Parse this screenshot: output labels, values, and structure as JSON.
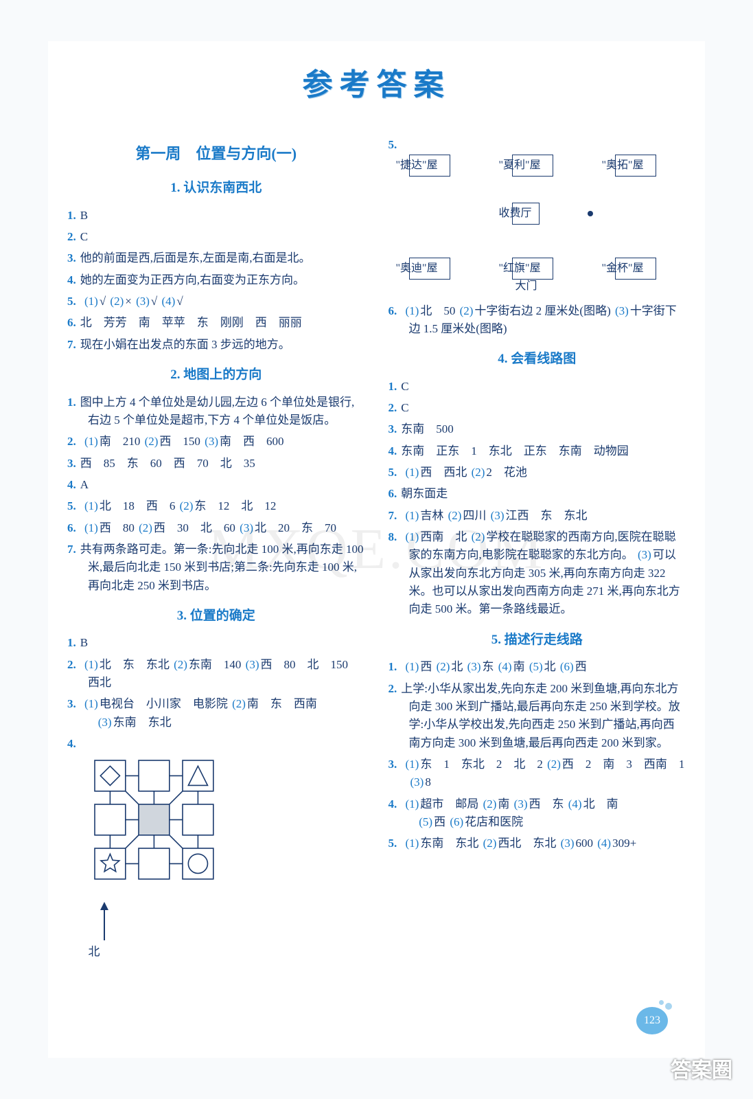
{
  "title": "参考答案",
  "watermark_center": "MXQE.COM",
  "watermark_corner": "答案圈",
  "page_number": "123",
  "left": {
    "chapter": "第一周　位置与方向(一)",
    "s1": {
      "heading": "1. 认识东南西北",
      "q1": "B",
      "q2": "C",
      "q3": "他的前面是西,后面是东,左面是南,右面是北。",
      "q4": "她的左面变为正西方向,右面变为正东方向。",
      "q5_p1": "(1)",
      "q5_v1": "√",
      "q5_p2": "(2)",
      "q5_v2": "×",
      "q5_p3": "(3)",
      "q5_v3": "√",
      "q5_p4": "(4)",
      "q5_v4": "√",
      "q6": "北　芳芳　南　苹苹　东　刚刚　西　丽丽",
      "q7": "现在小娟在出发点的东面 3 步远的地方。"
    },
    "s2": {
      "heading": "2. 地图上的方向",
      "q1": "图中上方 4 个单位处是幼儿园,左边 6 个单位处是银行,右边 5 个单位处是超市,下方 4 个单位处是饭店。",
      "q2_p1": "(1)",
      "q2_v1": "南　210",
      "q2_p2": "(2)",
      "q2_v2": "西　150",
      "q2_p3": "(3)",
      "q2_v3": "南　西　600",
      "q3": "西　85　东　60　西　70　北　35",
      "q4": "A",
      "q5_p1": "(1)",
      "q5_v1": "北　18　西　6",
      "q5_p2": "(2)",
      "q5_v2": "东　12　北　12",
      "q6_p1": "(1)",
      "q6_v1": "西　80",
      "q6_p2": "(2)",
      "q6_v2": "西　30　北　60",
      "q6_p3": "(3)",
      "q6_v3": "北　20　东　70",
      "q7": "共有两条路可走。第一条:先向北走 100 米,再向东走 100 米,最后向北走 150 米到书店;第二条:先向东走 100 米,再向北走 250 米到书店。"
    },
    "s3": {
      "heading": "3. 位置的确定",
      "q1": "B",
      "q2_p1": "(1)",
      "q2_v1": "北　东　东北",
      "q2_p2": "(2)",
      "q2_v2": "东南　140",
      "q2_p3": "(3)",
      "q2_v3": "西　80　北　150　西北",
      "q3_p1": "(1)",
      "q3_v1": "电视台　小川家　电影院",
      "q3_p2": "(2)",
      "q3_v2": "南　东　西南",
      "q3_p3": "(3)",
      "q3_v3": "东南　东北",
      "q4_north": "北",
      "diagram": {
        "grid_size": 3,
        "line_color": "#1a3a6e",
        "line_width": 1.6,
        "cell": 64,
        "fill_center": "#d0d6dd",
        "corners": {
          "nw": "diamond",
          "ne": "triangle",
          "sw": "star",
          "se": "circle"
        }
      }
    }
  },
  "right": {
    "q5": {
      "boxes": {
        "nw": "\"捷达\"屋",
        "n": "\"夏利\"屋",
        "ne": "\"奥拓\"屋",
        "c": "收费厅",
        "sw": "\"奥迪\"屋",
        "s": "\"红旗\"屋",
        "se": "\"金杯\"屋"
      },
      "gate": "大门"
    },
    "q6_p1": "(1)",
    "q6_v1": "北　50",
    "q6_p2": "(2)",
    "q6_v2": "十字街右边 2 厘米处(图略)",
    "q6_p3": "(3)",
    "q6_v3": "十字街下边 1.5 厘米处(图略)",
    "s4": {
      "heading": "4. 会看线路图",
      "q1": "C",
      "q2": "C",
      "q3": "东南　500",
      "q4": "东南　正东　1　东北　正东　东南　动物园",
      "q5_p1": "(1)",
      "q5_v1": "西　西北",
      "q5_p2": "(2)",
      "q5_v2": "2　花池",
      "q6": "朝东面走",
      "q7_p1": "(1)",
      "q7_v1": "吉林",
      "q7_p2": "(2)",
      "q7_v2": "四川",
      "q7_p3": "(3)",
      "q7_v3": "江西　东　东北",
      "q8_p1": "(1)",
      "q8_v1": "西南　北",
      "q8_p2": "(2)",
      "q8_v2": "学校在聪聪家的西南方向,医院在聪聪家的东南方向,电影院在聪聪家的东北方向。",
      "q8_p3": "(3)",
      "q8_v3": "可以从家出发向东北方向走 305 米,再向东南方向走 322 米。也可以从家出发向西南方向走 271 米,再向东北方向走 500 米。第一条路线最近。"
    },
    "s5": {
      "heading": "5. 描述行走线路",
      "q1_p1": "(1)",
      "q1_v1": "西",
      "q1_p2": "(2)",
      "q1_v2": "北",
      "q1_p3": "(3)",
      "q1_v3": "东",
      "q1_p4": "(4)",
      "q1_v4": "南",
      "q1_p5": "(5)",
      "q1_v5": "北",
      "q1_p6": "(6)",
      "q1_v6": "西",
      "q2": "上学:小华从家出发,先向东走 200 米到鱼塘,再向东北方向走 300 米到广播站,最后再向东走 250 米到学校。放学:小华从学校出发,先向西走 250 米到广播站,再向西南方向走 300 米到鱼塘,最后再向西走 200 米到家。",
      "q3_p1": "(1)",
      "q3_v1": "东　1　东北　2　北　2",
      "q3_p2": "(2)",
      "q3_v2": "西　2　南　3　西南　1",
      "q3_p3": "(3)",
      "q3_v3": "8",
      "q4_p1": "(1)",
      "q4_v1": "超市　邮局",
      "q4_p2": "(2)",
      "q4_v2": "南",
      "q4_p3": "(3)",
      "q4_v3": "西　东",
      "q4_p4": "(4)",
      "q4_v4": "北　南",
      "q4_p5": "(5)",
      "q4_v5": "西",
      "q4_p6": "(6)",
      "q4_v6": "花店和医院",
      "q5_p1": "(1)",
      "q5_v1": "东南　东北",
      "q5_p2": "(2)",
      "q5_v2": "西北　东北",
      "q5_p3": "(3)",
      "q5_v3": "600",
      "q5_p4": "(4)",
      "q5_v4": "309+"
    }
  }
}
